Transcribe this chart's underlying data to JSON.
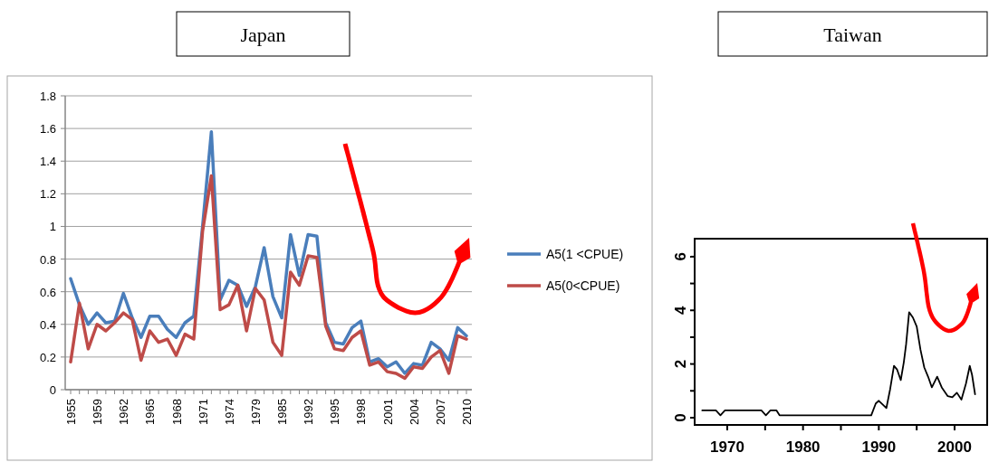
{
  "chart_data": [
    {
      "type": "line",
      "title": "Japan",
      "categories": [
        "1955",
        null,
        null,
        "1959",
        null,
        null,
        "1962",
        null,
        null,
        "1965",
        null,
        null,
        "1968",
        null,
        null,
        "1971",
        null,
        null,
        "1974",
        null,
        null,
        "1979",
        null,
        null,
        "1985",
        null,
        null,
        "1992",
        null,
        null,
        "1995",
        null,
        null,
        "1998",
        null,
        null,
        "2001",
        null,
        null,
        "2004",
        null,
        null,
        "2007",
        null,
        null,
        "2010"
      ],
      "series": [
        {
          "name": "A5(1 <CPUE)",
          "color": "#4a7ebb",
          "values": [
            0.68,
            0.52,
            0.4,
            0.47,
            0.41,
            0.42,
            0.59,
            0.44,
            0.32,
            0.45,
            0.45,
            0.37,
            0.32,
            0.41,
            0.45,
            1.0,
            1.58,
            0.55,
            0.67,
            0.64,
            0.51,
            0.63,
            0.87,
            0.57,
            0.44,
            0.95,
            0.7,
            0.95,
            0.94,
            0.41,
            0.29,
            0.28,
            0.38,
            0.42,
            0.17,
            0.19,
            0.14,
            0.17,
            0.1,
            0.16,
            0.15,
            0.29,
            0.25,
            0.18,
            0.38,
            0.33
          ]
        },
        {
          "name": "A5(0<CPUE)",
          "color": "#be4b48",
          "values": [
            0.17,
            0.53,
            0.25,
            0.4,
            0.36,
            0.41,
            0.47,
            0.43,
            0.18,
            0.36,
            0.29,
            0.31,
            0.21,
            0.34,
            0.31,
            0.97,
            1.31,
            0.49,
            0.52,
            0.64,
            0.36,
            0.62,
            0.55,
            0.29,
            0.21,
            0.72,
            0.64,
            0.82,
            0.81,
            0.39,
            0.25,
            0.24,
            0.32,
            0.36,
            0.15,
            0.17,
            0.11,
            0.1,
            0.07,
            0.14,
            0.13,
            0.2,
            0.24,
            0.1,
            0.33,
            0.31
          ]
        }
      ],
      "ylim": [
        0,
        1.8
      ],
      "yticks": [
        0,
        0.2,
        0.4,
        0.6,
        0.8,
        1,
        1.2,
        1.4,
        1.6,
        1.8
      ],
      "grid": "y",
      "legend": "right"
    },
    {
      "type": "line",
      "title": "Taiwan",
      "series": [
        {
          "color": "#000000",
          "x": [
            1966.7,
            1968.5,
            1969.1,
            1969.7,
            1974.5,
            1975.1,
            1975.7,
            1976.5,
            1976.9,
            1989.0,
            1989.6,
            1990.0,
            1990.6,
            1991.0,
            1991.5,
            1992.0,
            1992.4,
            1992.9,
            1993.3,
            1993.6,
            1994.0,
            1994.5,
            1995.0,
            1995.5,
            1996.0,
            1996.5,
            1997.0,
            1997.7,
            1998.3,
            1999.1,
            1999.7,
            2000.3,
            2000.9,
            2001.5,
            2002.0,
            2002.3,
            2002.7
          ],
          "values": [
            0.27,
            0.27,
            0.09,
            0.27,
            0.27,
            0.09,
            0.27,
            0.27,
            0.09,
            0.09,
            0.53,
            0.63,
            0.47,
            0.36,
            1.07,
            1.93,
            1.8,
            1.4,
            2.07,
            2.73,
            3.93,
            3.73,
            3.4,
            2.53,
            1.87,
            1.53,
            1.13,
            1.53,
            1.13,
            0.8,
            0.76,
            0.93,
            0.67,
            1.27,
            1.93,
            1.6,
            0.87
          ]
        }
      ],
      "xlim": [
        1965.7,
        2004.3
      ],
      "xticks": [
        1970,
        {
          "value": 1975,
          "label": null
        },
        1980,
        {
          "value": 1985,
          "label": null
        },
        1990,
        {
          "value": 1995,
          "label": null
        },
        2000
      ],
      "ylim": [
        -0.27,
        6.67
      ],
      "yticks": [
        0,
        {
          "value": 1,
          "label": null
        },
        2,
        {
          "value": 3,
          "label": null
        },
        4,
        {
          "value": 5,
          "label": null
        },
        6
      ]
    }
  ]
}
